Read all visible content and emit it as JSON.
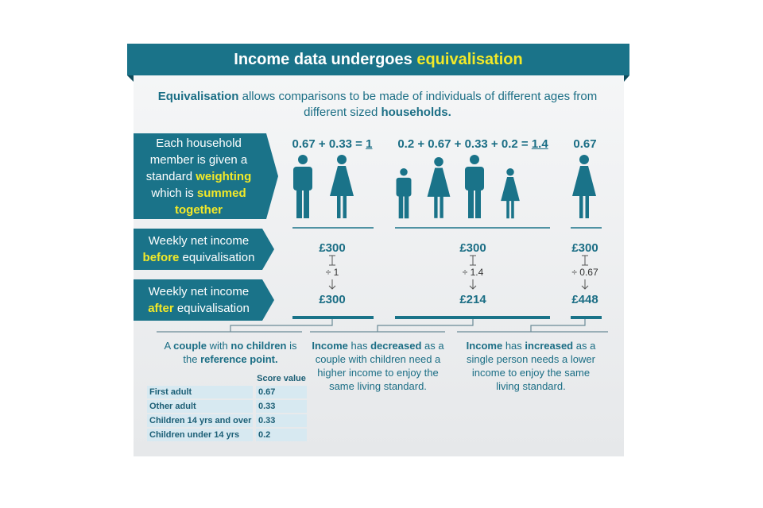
{
  "header": {
    "title": [
      "Income data undergoes",
      "equivalisation"
    ]
  },
  "intro": [
    "Equivalisation",
    "allows comparisons to be made of individuals of different ages from different sized",
    "households."
  ],
  "rows": [
    [
      "Each household member is given a standard",
      "weighting",
      "which is",
      "summed together"
    ],
    [
      "Weekly net income",
      "before",
      "equivalisation"
    ],
    [
      "Weekly net income",
      "after",
      "equivalisation"
    ]
  ],
  "households": [
    {
      "equation": [
        "0.67 + 0.33 =",
        "1"
      ],
      "before": "£300",
      "divisor": "÷ 1",
      "after": "£300"
    },
    {
      "equation": [
        "0.2 + 0.67 + 0.33 + 0.2 =",
        "1.4"
      ],
      "before": "£300",
      "divisor": "÷ 1.4",
      "after": "£214"
    },
    {
      "equation": [
        "0.67"
      ],
      "before": "£300",
      "divisor": "÷ 0.67",
      "after": "£448"
    }
  ],
  "notes": [
    [
      "A",
      "couple",
      "with",
      "no children",
      "is the",
      "reference point."
    ],
    [
      "Income",
      "has",
      "decreased",
      "as a couple with children need a higher income to enjoy the same living standard."
    ],
    [
      "Income",
      "has",
      "increased",
      "as a single person needs a lower income to enjoy the same living standard."
    ]
  ],
  "table": {
    "header": "Score value",
    "rows": [
      [
        "First adult",
        0.67
      ],
      [
        "Other adult",
        0.33
      ],
      [
        "Children 14 yrs and over",
        0.33
      ],
      [
        "Children under 14 yrs",
        0.2
      ]
    ]
  }
}
